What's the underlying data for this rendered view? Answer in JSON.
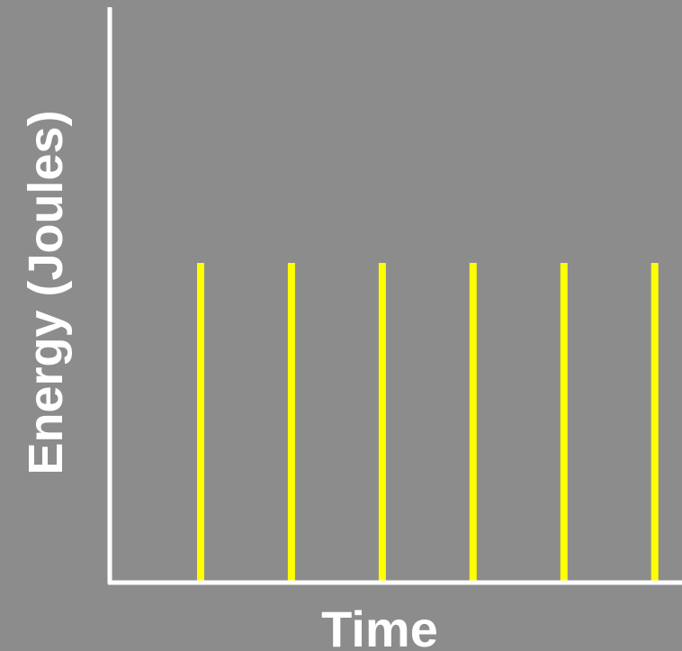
{
  "chart_data": {
    "type": "bar",
    "title": "",
    "xlabel": "Time",
    "ylabel": "Energy (Joules)",
    "x": [
      1,
      2,
      3,
      4,
      5,
      6
    ],
    "values": [
      1,
      1,
      1,
      1,
      1,
      1
    ],
    "xlim": [
      0,
      6.3
    ],
    "ylim": [
      0,
      1.8
    ],
    "grid": false,
    "legend": "none",
    "colors": {
      "background": "#8c8c8c",
      "axes": "#ffffff",
      "bars": "#ffff00",
      "text": "#ffffff"
    }
  }
}
